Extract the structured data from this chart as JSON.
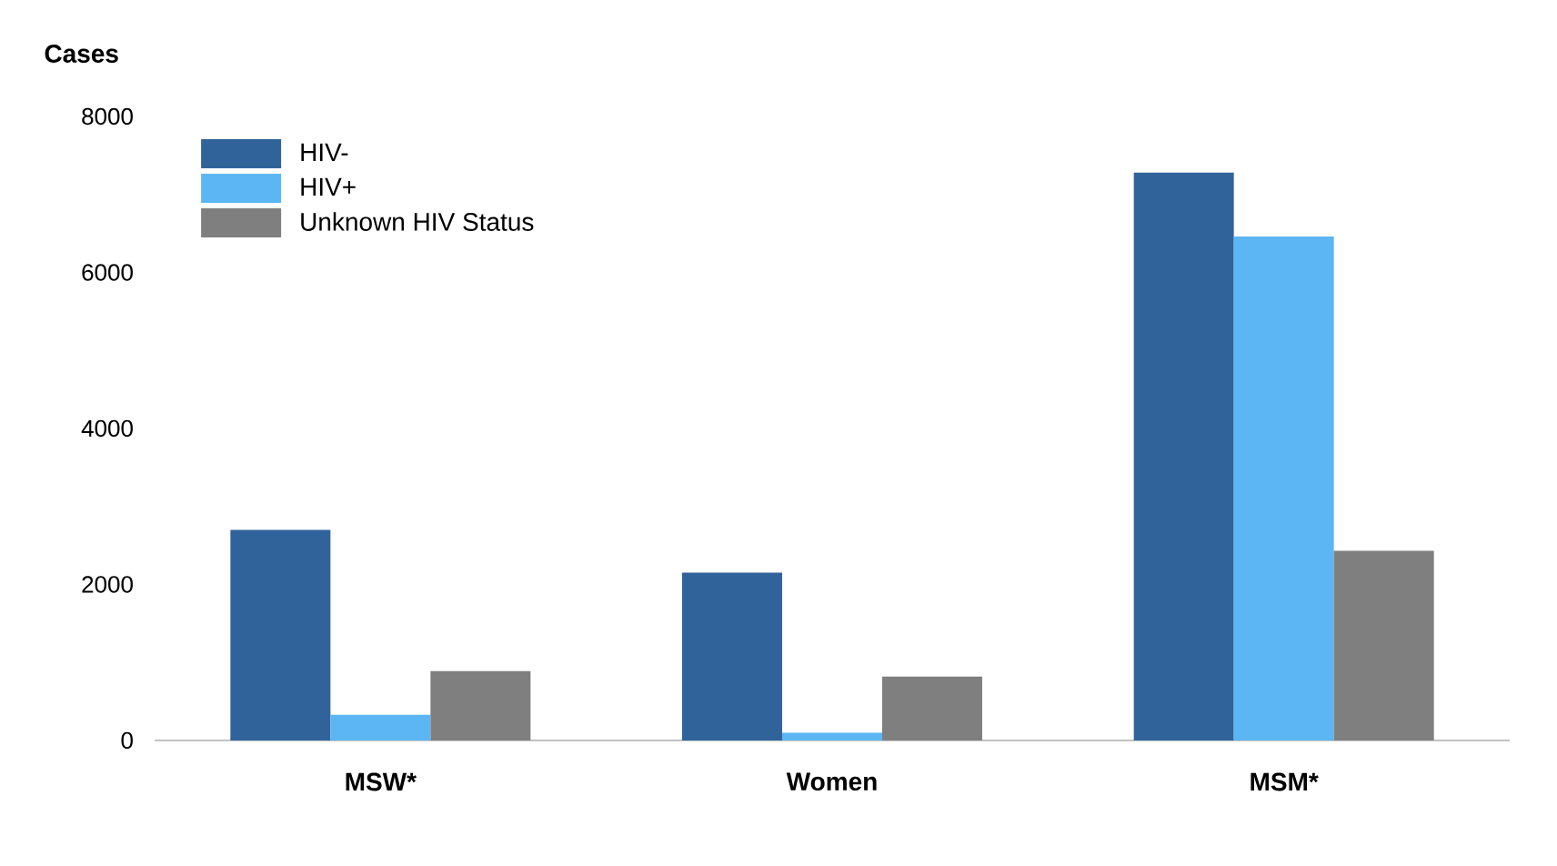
{
  "chart_data": {
    "type": "bar",
    "ylabel": "Cases",
    "categories": [
      "MSW*",
      "Women",
      "MSM*"
    ],
    "series": [
      {
        "name": "HIV-",
        "color": "#31639b",
        "values": [
          2700,
          2150,
          7280
        ]
      },
      {
        "name": "HIV+",
        "color": "#5cb6f4",
        "values": [
          330,
          100,
          6460
        ]
      },
      {
        "name": "Unknown HIV Status",
        "color": "#7f7f7f",
        "values": [
          890,
          820,
          2430
        ]
      }
    ],
    "ylim": [
      0,
      8000
    ],
    "yticks": [
      0,
      2000,
      4000,
      6000,
      8000
    ],
    "legend": "top left"
  }
}
